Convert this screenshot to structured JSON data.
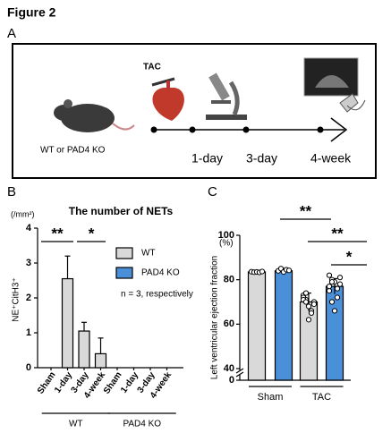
{
  "figure_title": "Figure 2",
  "panel_a": {
    "label": "A",
    "procedure": "TAC",
    "mice": "WT  or PAD4 KO",
    "timepoints": [
      "1-day",
      "3-day",
      "4-week"
    ]
  },
  "chart_data": [
    {
      "type": "bar",
      "panel": "B",
      "title": "The number of NETs",
      "y_label": "NE⁺CitH3⁺",
      "y_unit": "(/mm²)",
      "categories": [
        "Sham",
        "1-day",
        "3-day",
        "4-week"
      ],
      "series": [
        {
          "name": "WT",
          "color": "#d9d9d9",
          "values": [
            0,
            2.55,
            1.05,
            0.4
          ],
          "errors": [
            0,
            0.65,
            0.25,
            0.45
          ]
        },
        {
          "name": "PAD4 KO",
          "color": "#4a90d9",
          "values": [
            0,
            0,
            0,
            0
          ],
          "errors": [
            0,
            0,
            0,
            0
          ]
        }
      ],
      "ylim": [
        0,
        4
      ],
      "yticks": [
        0,
        1,
        2,
        3,
        4
      ],
      "note": "n = 3, respectively",
      "significance": [
        "**",
        "*"
      ]
    },
    {
      "type": "bar",
      "panel": "C",
      "y_label": "Left ventricular ejection fraction",
      "y_unit": "(%)",
      "categories": [
        "Sham",
        "TAC"
      ],
      "series": [
        {
          "name": "WT",
          "color": "#d9d9d9",
          "values": [
            83.5,
            70
          ],
          "errors": [
            0.5,
            4
          ],
          "points": [
            [
              83.6,
              83.4,
              83.5,
              83.3,
              83.7
            ],
            [
              73,
              71,
              68,
              66,
              70,
              72,
              74,
              62,
              65,
              69,
              71,
              70
            ]
          ]
        },
        {
          "name": "PAD4 KO",
          "color": "#4a90d9",
          "values": [
            84,
            77
          ],
          "errors": [
            1,
            3.5
          ],
          "points": [
            [
              84,
              85,
              83.5,
              84.5,
              84.2
            ],
            [
              82,
              80,
              79,
              76,
              78,
              75,
              70,
              66,
              72,
              81,
              77,
              79
            ]
          ]
        }
      ],
      "ylim": [
        0,
        100
      ],
      "yticks": [
        0,
        40,
        60,
        80,
        100
      ],
      "axis_break": 40,
      "significance": [
        "**",
        "**",
        "*"
      ]
    }
  ]
}
